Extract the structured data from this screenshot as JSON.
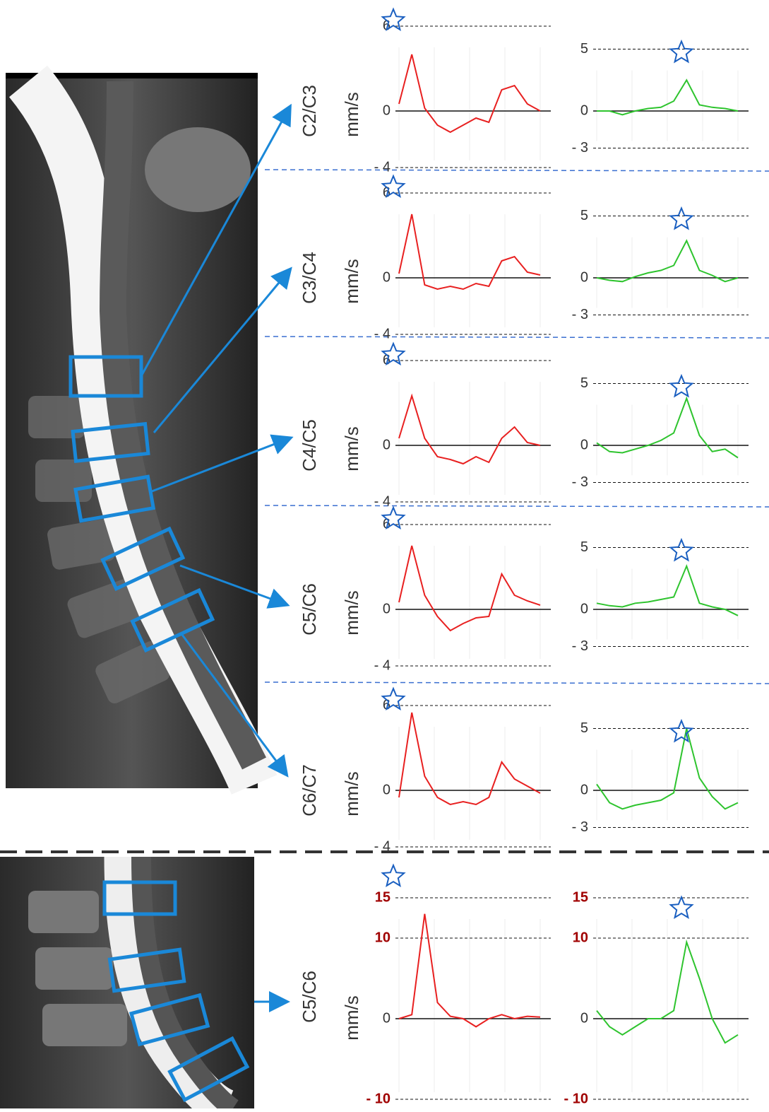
{
  "chart_data": [
    {
      "level": "C2/C3",
      "y_label": "mm/s",
      "charts": [
        {
          "type": "line",
          "ylim": [
            -4,
            6
          ],
          "yticks": [
            6,
            0,
            {
              "value": -4,
              "label": "- 4"
            }
          ],
          "series": [
            {
              "color": "#e82020",
              "values": [
                0.5,
                4,
                0.2,
                -1,
                -1.5,
                -1,
                -0.5,
                -0.8,
                1.5,
                1.8,
                0.5,
                0
              ]
            }
          ]
        },
        {
          "type": "line",
          "ylim": [
            -3,
            5
          ],
          "yticks": [
            5,
            0,
            {
              "value": -3,
              "label": "- 3"
            }
          ],
          "series": [
            {
              "color": "#2ec42e",
              "values": [
                0,
                0,
                -0.3,
                0,
                0.2,
                0.3,
                0.8,
                2.5,
                0.5,
                0.3,
                0.2,
                0
              ]
            }
          ]
        }
      ]
    },
    {
      "level": "C3/C4",
      "y_label": "mm/s",
      "charts": [
        {
          "type": "line",
          "ylim": [
            -4,
            6
          ],
          "yticks": [
            6,
            0,
            {
              "value": -4,
              "label": "- 4"
            }
          ],
          "series": [
            {
              "color": "#e82020",
              "values": [
                0.3,
                4.5,
                -0.5,
                -0.8,
                -0.6,
                -0.8,
                -0.4,
                -0.6,
                1.2,
                1.5,
                0.4,
                0.2
              ]
            }
          ]
        },
        {
          "type": "line",
          "ylim": [
            -3,
            5
          ],
          "yticks": [
            5,
            0,
            {
              "value": -3,
              "label": "- 3"
            }
          ],
          "series": [
            {
              "color": "#2ec42e",
              "values": [
                0,
                -0.2,
                -0.3,
                0.1,
                0.4,
                0.6,
                1,
                3,
                0.6,
                0.2,
                -0.3,
                0
              ]
            }
          ]
        }
      ]
    },
    {
      "level": "C4/C5",
      "y_label": "mm/s",
      "charts": [
        {
          "type": "line",
          "ylim": [
            -4,
            6
          ],
          "yticks": [
            6,
            0,
            {
              "value": -4,
              "label": "- 4"
            }
          ],
          "series": [
            {
              "color": "#e82020",
              "values": [
                0.5,
                3.5,
                0.5,
                -0.8,
                -1,
                -1.3,
                -0.8,
                -1.2,
                0.5,
                1.3,
                0.2,
                0
              ]
            }
          ]
        },
        {
          "type": "line",
          "ylim": [
            -3,
            5
          ],
          "yticks": [
            5,
            0,
            {
              "value": -3,
              "label": "- 3"
            }
          ],
          "series": [
            {
              "color": "#2ec42e",
              "values": [
                0.2,
                -0.5,
                -0.6,
                -0.3,
                0,
                0.4,
                1,
                3.8,
                0.8,
                -0.5,
                -0.3,
                -1
              ]
            }
          ]
        }
      ]
    },
    {
      "level": "C5/C6",
      "y_label": "mm/s",
      "charts": [
        {
          "type": "line",
          "ylim": [
            -4,
            6
          ],
          "yticks": [
            6,
            0,
            {
              "value": -4,
              "label": "- 4"
            }
          ],
          "series": [
            {
              "color": "#e82020",
              "values": [
                0.5,
                4.5,
                1,
                -0.5,
                -1.5,
                -1,
                -0.6,
                -0.5,
                2.5,
                1,
                0.6,
                0.3
              ]
            }
          ]
        },
        {
          "type": "line",
          "ylim": [
            -3,
            5
          ],
          "yticks": [
            5,
            0,
            {
              "value": -3,
              "label": "- 3"
            }
          ],
          "series": [
            {
              "color": "#2ec42e",
              "values": [
                0.5,
                0.3,
                0.2,
                0.5,
                0.6,
                0.8,
                1,
                3.5,
                0.5,
                0.2,
                0,
                -0.5
              ]
            }
          ]
        }
      ]
    },
    {
      "level": "C6/C7",
      "y_label": "mm/s",
      "charts": [
        {
          "type": "line",
          "ylim": [
            -4,
            6
          ],
          "yticks": [
            6,
            0,
            {
              "value": -4,
              "label": "- 4"
            }
          ],
          "series": [
            {
              "color": "#e82020",
              "values": [
                -0.5,
                5.5,
                1,
                -0.5,
                -1,
                -0.8,
                -1,
                -0.5,
                2,
                0.8,
                0.3,
                -0.2
              ]
            }
          ]
        },
        {
          "type": "line",
          "ylim": [
            -3,
            5
          ],
          "yticks": [
            5,
            0,
            {
              "value": -3,
              "label": "- 3"
            }
          ],
          "series": [
            {
              "color": "#2ec42e",
              "values": [
                0.5,
                -1,
                -1.5,
                -1.2,
                -1,
                -0.8,
                -0.2,
                5,
                1,
                -0.5,
                -1.5,
                -1
              ]
            }
          ]
        }
      ]
    },
    {
      "level": "C5/C6",
      "y_label": "mm/s",
      "charts": [
        {
          "type": "line",
          "ylim": [
            -10,
            15
          ],
          "yticks": [
            15,
            10,
            0,
            {
              "value": -10,
              "label": "- 10"
            }
          ],
          "tick_color": "#a00000",
          "series": [
            {
              "color": "#e82020",
              "values": [
                0,
                0.5,
                13,
                2,
                0.3,
                0,
                -1,
                0,
                0.5,
                0,
                0.3,
                0.2
              ]
            }
          ]
        },
        {
          "type": "line",
          "ylim": [
            -10,
            15
          ],
          "yticks": [
            15,
            10,
            0,
            {
              "value": -10,
              "label": "- 10"
            }
          ],
          "tick_color": "#a00000",
          "series": [
            {
              "color": "#2ec42e",
              "values": [
                1,
                -1,
                -2,
                -1,
                0,
                0,
                1,
                9.5,
                5,
                0,
                -3,
                -2
              ]
            }
          ]
        }
      ]
    }
  ]
}
